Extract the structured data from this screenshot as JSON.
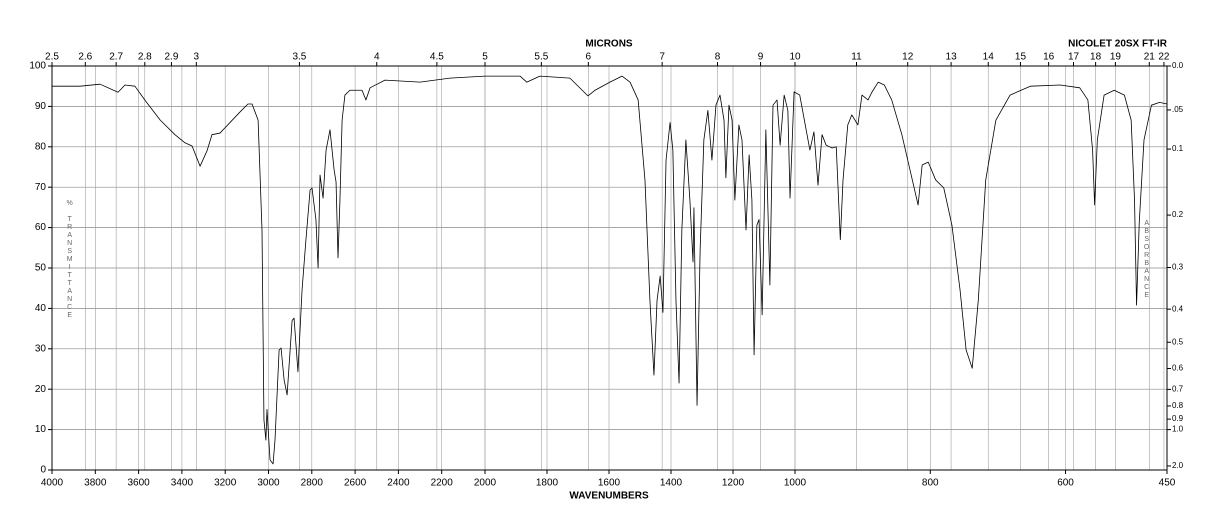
{
  "chart_data": {
    "type": "line",
    "title": "NICOLET 20SX FT-IR",
    "x_label": "WAVENUMBERS",
    "x2_label": "MICRONS",
    "y_label": "% TRANSMITTANCE",
    "y2_label": "ABSORBANCE",
    "color": "#000000",
    "grid": true,
    "xlim": [
      4000,
      450
    ],
    "x_scale_changes": [
      2000,
      1000
    ],
    "xticks": [
      4000,
      3800,
      3600,
      3400,
      3200,
      3000,
      2800,
      2600,
      2400,
      2200,
      2000,
      1800,
      1600,
      1400,
      1200,
      1000,
      800,
      600,
      450
    ],
    "x2ticks": [
      2.5,
      2.6,
      2.7,
      2.8,
      2.9,
      3,
      3.5,
      4,
      4.5,
      5,
      5.5,
      6,
      7,
      8,
      9,
      10,
      11,
      12,
      13,
      14,
      15,
      16,
      17,
      18,
      19,
      21,
      22
    ],
    "ylim": [
      0,
      100
    ],
    "yticks": [
      0,
      10,
      20,
      30,
      40,
      50,
      60,
      70,
      80,
      90,
      100
    ],
    "y2_scale": "absorbance",
    "y2ticks": [
      {
        "value": 0,
        "label": "0.0"
      },
      {
        "value": 0.05,
        "label": ".05"
      },
      0.1,
      0.2,
      0.3,
      0.4,
      0.5,
      0.6,
      0.7,
      0.8,
      0.9,
      {
        "value": 1,
        "label": "1.0"
      },
      {
        "value": 2,
        "label": "2.0"
      }
    ],
    "x": [
      4000,
      3870,
      3778,
      3695,
      3663,
      3617,
      3570,
      3500,
      3432,
      3386,
      3353,
      3316,
      3284,
      3261,
      3224,
      3178,
      3132,
      3095,
      3076,
      3048,
      3030,
      3021,
      3012,
      3007,
      2993,
      2979,
      2970,
      2951,
      2942,
      2928,
      2914,
      2891,
      2882,
      2864,
      2845,
      2827,
      2808,
      2799,
      2781,
      2771,
      2762,
      2748,
      2734,
      2716,
      2697,
      2688,
      2679,
      2670,
      2660,
      2647,
      2624,
      2568,
      2550,
      2531,
      2462,
      2300,
      2162,
      2000,
      1887,
      1865,
      1823,
      1726,
      1668,
      1645,
      1597,
      1558,
      1532,
      1506,
      1484,
      1468,
      1455,
      1445,
      1435,
      1426,
      1416,
      1403,
      1394,
      1384,
      1374,
      1365,
      1352,
      1339,
      1329,
      1326,
      1316,
      1306,
      1294,
      1281,
      1268,
      1255,
      1242,
      1229,
      1223,
      1213,
      1203,
      1194,
      1181,
      1171,
      1158,
      1148,
      1139,
      1132,
      1123,
      1116,
      1106,
      1094,
      1081,
      1071,
      1058,
      1048,
      1035,
      1023,
      1016,
      1003,
      993,
      978,
      972,
      966,
      960,
      954,
      945,
      939,
      933,
      929,
      922,
      916,
      907,
      901,
      892,
      886,
      877,
      868,
      857,
      842,
      830,
      818,
      812,
      803,
      792,
      780,
      768,
      756,
      747,
      738,
      729,
      718,
      703,
      682,
      652,
      608,
      579,
      567,
      560,
      557,
      553,
      543,
      528,
      513,
      503,
      498,
      495,
      491,
      484,
      473,
      461,
      450
    ],
    "values": [
      95,
      95,
      95.5,
      93.5,
      95.3,
      95,
      91.5,
      86.6,
      83,
      81,
      80.2,
      75.2,
      79,
      83,
      83.4,
      86,
      88.6,
      90.6,
      90.6,
      86.6,
      59.4,
      12.4,
      7.4,
      15,
      2.5,
      1.5,
      7.4,
      29.7,
      30.2,
      22.3,
      18.6,
      37,
      37.6,
      24.3,
      44.6,
      57,
      69.3,
      69.8,
      62,
      50,
      73,
      67.3,
      79.2,
      84.2,
      74.3,
      71.3,
      52.5,
      66.8,
      86.6,
      92.8,
      94,
      94,
      91.6,
      94.6,
      96.5,
      96,
      97,
      97.5,
      97.5,
      96,
      97.5,
      97,
      92.6,
      94,
      96,
      97.5,
      96,
      91.6,
      71.8,
      42,
      23.5,
      42,
      48,
      39,
      76.7,
      86,
      79.2,
      42,
      21.5,
      59.4,
      81.7,
      66.8,
      51.5,
      64.9,
      16,
      54.5,
      81.7,
      89,
      76.7,
      90.3,
      92.8,
      86.6,
      72.3,
      90.3,
      86.6,
      66.8,
      85.4,
      81.7,
      59.4,
      78,
      66.8,
      28.5,
      60.6,
      62,
      38.4,
      84.2,
      45.8,
      90.3,
      91.6,
      80.4,
      92.8,
      89,
      67.3,
      93.6,
      92.8,
      79.2,
      83.7,
      70.5,
      83,
      80.4,
      79.7,
      80,
      57,
      71.8,
      85.4,
      87.9,
      85.4,
      92.8,
      91.6,
      93.6,
      96,
      95.3,
      91.6,
      83,
      74.3,
      65.6,
      75.5,
      76.2,
      71.8,
      69.8,
      60.6,
      44.6,
      29.7,
      25.2,
      42,
      71.8,
      86.6,
      92.8,
      95,
      95.3,
      94.6,
      91.6,
      79.2,
      65.6,
      81.7,
      92.8,
      94,
      92.8,
      86.6,
      66.8,
      40.8,
      61.4,
      81.7,
      90.3,
      91,
      90.6
    ]
  }
}
